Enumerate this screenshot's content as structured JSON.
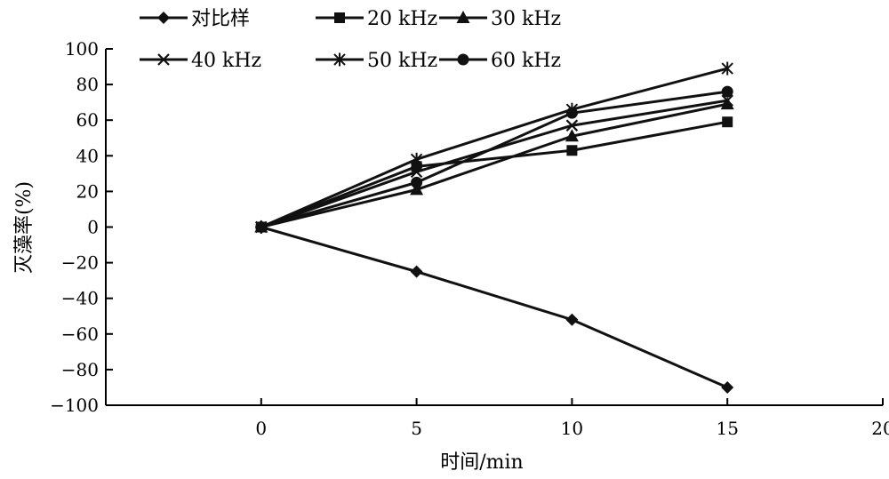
{
  "chart_data": {
    "type": "line",
    "title": "",
    "xlabel": "时间/min",
    "ylabel": "灭藻率(%)",
    "xlim": [
      -5,
      20
    ],
    "ylim": [
      -100,
      100
    ],
    "xticks": [
      0,
      5,
      10,
      15,
      20
    ],
    "yticks": [
      100,
      80,
      60,
      40,
      20,
      0,
      -20,
      -40,
      -60,
      -80,
      -100
    ],
    "ytick_labels": [
      "100",
      "80",
      "60",
      "40",
      "20",
      "0",
      "−20",
      "−40",
      "−60",
      "−80",
      "−100"
    ],
    "grid": false,
    "legend_position": "top-left",
    "line_color": "#111111",
    "series": [
      {
        "name": "对比样",
        "marker": "diamond",
        "x": [
          0,
          5,
          10,
          15
        ],
        "y": [
          0,
          -25,
          -52,
          -90
        ]
      },
      {
        "name": "20 kHz",
        "marker": "square",
        "x": [
          0,
          5,
          10,
          15
        ],
        "y": [
          0,
          34,
          43,
          59
        ]
      },
      {
        "name": "30 kHz",
        "marker": "triangle",
        "x": [
          0,
          5,
          10,
          15
        ],
        "y": [
          0,
          21,
          51,
          69
        ]
      },
      {
        "name": "40 kHz",
        "marker": "x",
        "x": [
          0,
          5,
          10,
          15
        ],
        "y": [
          0,
          31,
          57,
          71
        ]
      },
      {
        "name": "50 kHz",
        "marker": "asterisk",
        "x": [
          0,
          5,
          10,
          15
        ],
        "y": [
          0,
          38,
          66,
          89
        ]
      },
      {
        "name": "60 kHz",
        "marker": "circle",
        "x": [
          0,
          5,
          10,
          15
        ],
        "y": [
          0,
          25,
          64,
          76
        ]
      }
    ]
  }
}
